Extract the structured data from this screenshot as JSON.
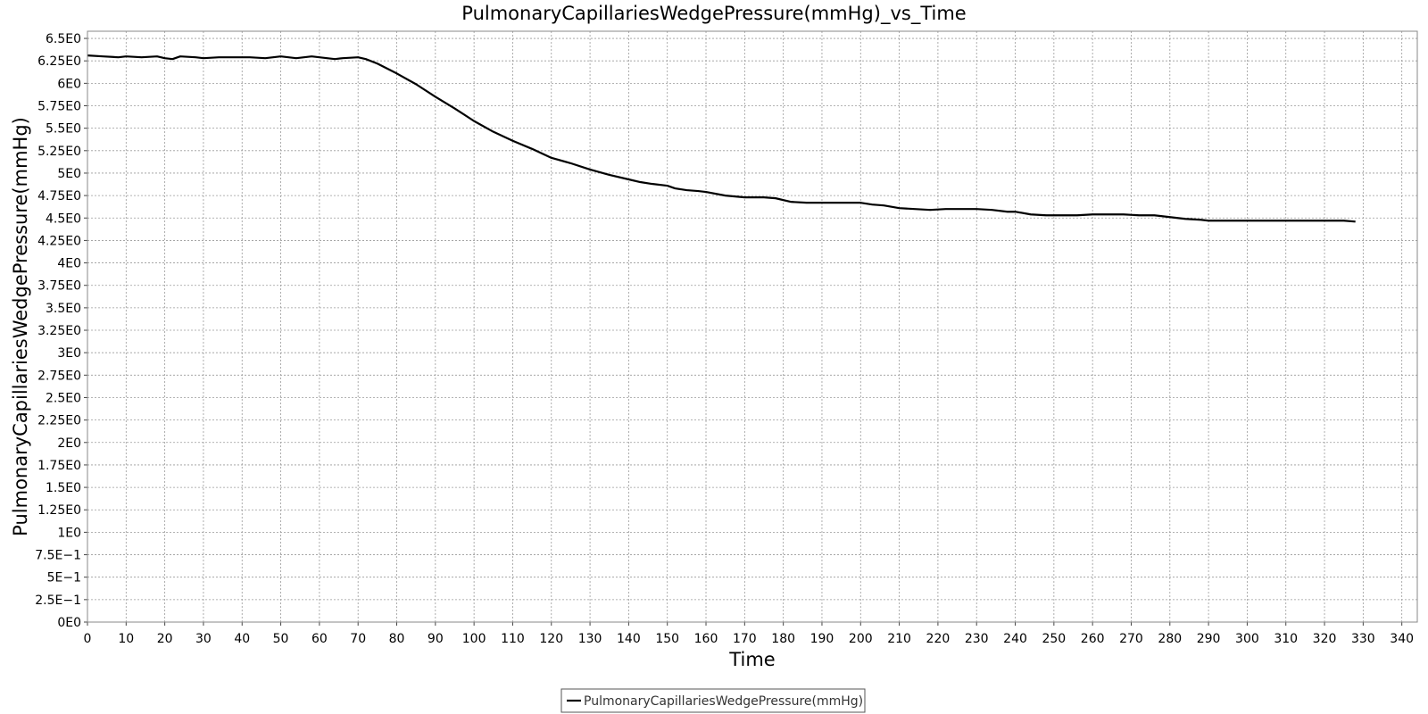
{
  "chart_data": {
    "type": "line",
    "title": "PulmonaryCapillariesWedgePressure(mmHg)_vs_Time",
    "xlabel": "Time",
    "ylabel": "PulmonaryCapillariesWedgePressure(mmHg)",
    "xlim": [
      0,
      344
    ],
    "ylim": [
      0,
      6.58
    ],
    "grid": true,
    "legend_position": "bottom-center",
    "x_ticks": [
      0,
      10,
      20,
      30,
      40,
      50,
      60,
      70,
      80,
      90,
      100,
      110,
      120,
      130,
      140,
      150,
      160,
      170,
      180,
      190,
      200,
      210,
      220,
      230,
      240,
      250,
      260,
      270,
      280,
      290,
      300,
      310,
      320,
      330,
      340
    ],
    "y_ticks": [
      {
        "value": 0,
        "label": "0E0"
      },
      {
        "value": 0.25,
        "label": "2.5E−1"
      },
      {
        "value": 0.5,
        "label": "5E−1"
      },
      {
        "value": 0.75,
        "label": "7.5E−1"
      },
      {
        "value": 1,
        "label": "1E0"
      },
      {
        "value": 1.25,
        "label": "1.25E0"
      },
      {
        "value": 1.5,
        "label": "1.5E0"
      },
      {
        "value": 1.75,
        "label": "1.75E0"
      },
      {
        "value": 2,
        "label": "2E0"
      },
      {
        "value": 2.25,
        "label": "2.25E0"
      },
      {
        "value": 2.5,
        "label": "2.5E0"
      },
      {
        "value": 2.75,
        "label": "2.75E0"
      },
      {
        "value": 3,
        "label": "3E0"
      },
      {
        "value": 3.25,
        "label": "3.25E0"
      },
      {
        "value": 3.5,
        "label": "3.5E0"
      },
      {
        "value": 3.75,
        "label": "3.75E0"
      },
      {
        "value": 4,
        "label": "4E0"
      },
      {
        "value": 4.25,
        "label": "4.25E0"
      },
      {
        "value": 4.5,
        "label": "4.5E0"
      },
      {
        "value": 4.75,
        "label": "4.75E0"
      },
      {
        "value": 5,
        "label": "5E0"
      },
      {
        "value": 5.25,
        "label": "5.25E0"
      },
      {
        "value": 5.5,
        "label": "5.5E0"
      },
      {
        "value": 5.75,
        "label": "5.75E0"
      },
      {
        "value": 6,
        "label": "6E0"
      },
      {
        "value": 6.25,
        "label": "6.25E0"
      },
      {
        "value": 6.5,
        "label": "6.5E0"
      }
    ],
    "series": [
      {
        "name": "PulmonaryCapillariesWedgePressure(mmHg)",
        "color": "#000000",
        "x": [
          0,
          4,
          8,
          10,
          14,
          18,
          20,
          22,
          24,
          28,
          30,
          34,
          38,
          42,
          46,
          50,
          54,
          58,
          60,
          64,
          66,
          70,
          72,
          75,
          80,
          85,
          90,
          95,
          100,
          105,
          110,
          115,
          120,
          125,
          130,
          135,
          140,
          143,
          146,
          150,
          152,
          155,
          158,
          160,
          165,
          170,
          175,
          178,
          182,
          186,
          190,
          195,
          200,
          203,
          206,
          210,
          214,
          218,
          222,
          226,
          230,
          234,
          238,
          240,
          244,
          248,
          252,
          256,
          260,
          264,
          268,
          272,
          276,
          280,
          284,
          288,
          290,
          295,
          300,
          305,
          310,
          315,
          320,
          325,
          328
        ],
        "y": [
          6.31,
          6.3,
          6.29,
          6.3,
          6.29,
          6.3,
          6.28,
          6.27,
          6.3,
          6.29,
          6.28,
          6.29,
          6.29,
          6.29,
          6.28,
          6.3,
          6.28,
          6.3,
          6.29,
          6.27,
          6.28,
          6.29,
          6.27,
          6.22,
          6.11,
          5.99,
          5.85,
          5.72,
          5.58,
          5.46,
          5.36,
          5.27,
          5.17,
          5.11,
          5.04,
          4.98,
          4.93,
          4.9,
          4.88,
          4.86,
          4.83,
          4.81,
          4.8,
          4.79,
          4.75,
          4.73,
          4.73,
          4.72,
          4.68,
          4.67,
          4.67,
          4.67,
          4.67,
          4.65,
          4.64,
          4.61,
          4.6,
          4.59,
          4.6,
          4.6,
          4.6,
          4.59,
          4.57,
          4.57,
          4.54,
          4.53,
          4.53,
          4.53,
          4.54,
          4.54,
          4.54,
          4.53,
          4.53,
          4.51,
          4.49,
          4.48,
          4.47,
          4.47,
          4.47,
          4.47,
          4.47,
          4.47,
          4.47,
          4.47,
          4.46
        ]
      }
    ]
  }
}
